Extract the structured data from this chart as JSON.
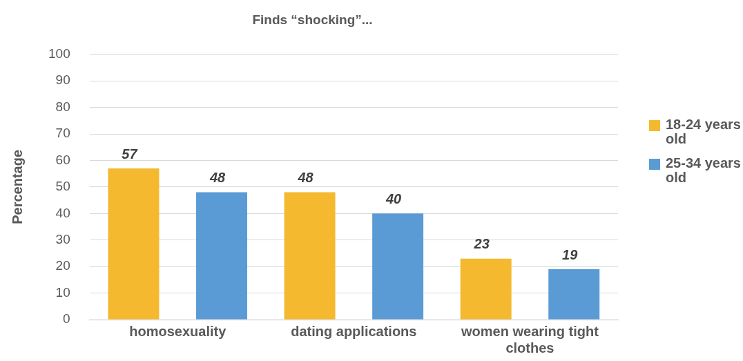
{
  "chart_data": {
    "type": "bar",
    "title": "Finds “shocking”...",
    "ylabel": "Percentage",
    "categories": [
      "homosexuality",
      "dating applications",
      "women wearing tight clothes"
    ],
    "series": [
      {
        "name": "18-24 years old",
        "color": "#f4b92f",
        "values": [
          57,
          48,
          23
        ]
      },
      {
        "name": "25-34 years old",
        "color": "#5b9bd5",
        "values": [
          48,
          40,
          19
        ]
      }
    ],
    "ylim": [
      0,
      100
    ],
    "yticks": [
      0,
      10,
      20,
      30,
      40,
      50,
      60,
      70,
      80,
      90,
      100
    ],
    "grid": "y",
    "legend": "right",
    "data_labels": true
  }
}
